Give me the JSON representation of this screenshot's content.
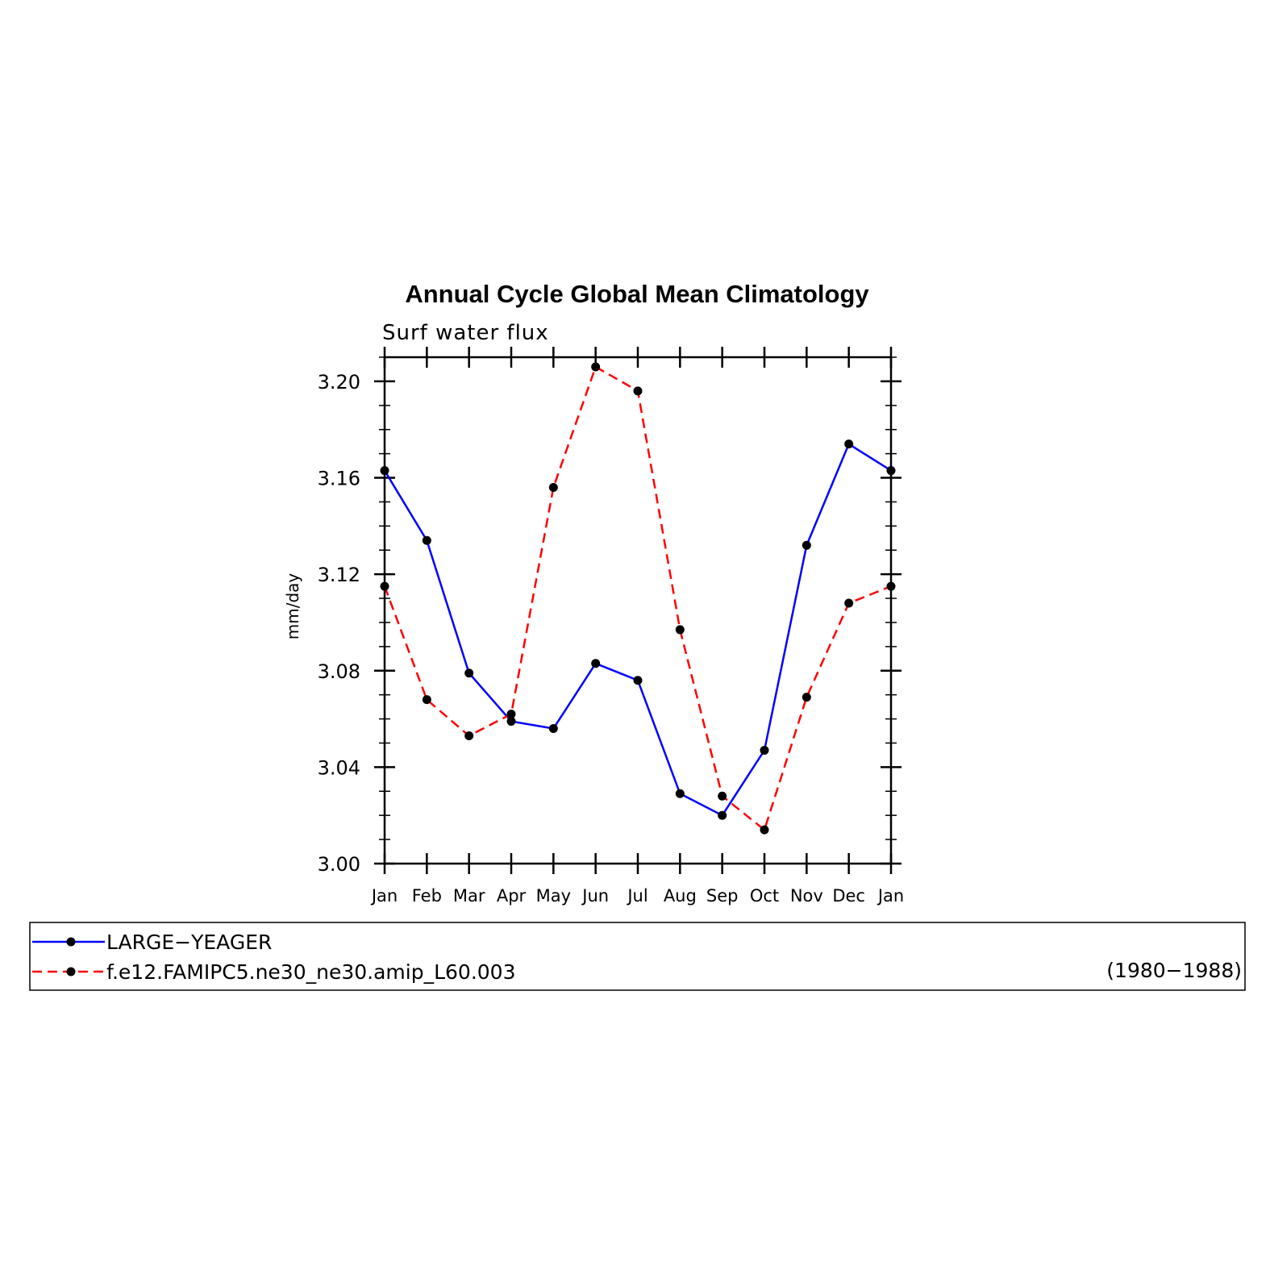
{
  "chart_data": {
    "type": "line",
    "title": "Annual Cycle Global Mean Climatology",
    "subtitle": "Surf water flux",
    "xlabel": "",
    "ylabel": "mm/day",
    "categories": [
      "Jan",
      "Feb",
      "Mar",
      "Apr",
      "May",
      "Jun",
      "Jul",
      "Aug",
      "Sep",
      "Oct",
      "Nov",
      "Dec",
      "Jan"
    ],
    "ylim": [
      3.0,
      3.21
    ],
    "yticks": [
      "3.00",
      "3.04",
      "3.08",
      "3.12",
      "3.16",
      "3.20"
    ],
    "series": [
      {
        "name": "LARGE−YEAGER",
        "color": "#0000ff",
        "dash": "solid",
        "marker": "circle",
        "values": [
          3.163,
          3.134,
          3.079,
          3.059,
          3.056,
          3.083,
          3.076,
          3.029,
          3.02,
          3.047,
          3.132,
          3.174,
          3.163
        ]
      },
      {
        "name": "f.e12.FAMIPC5.ne30_ne30.amip_L60.003",
        "color": "#ff0000",
        "dash": "dashed",
        "marker": "circle",
        "values": [
          3.115,
          3.068,
          3.053,
          3.062,
          3.156,
          3.206,
          3.196,
          3.097,
          3.028,
          3.014,
          3.069,
          3.108,
          3.115
        ]
      }
    ],
    "legend": {
      "placement": "bottom",
      "note": "(1980−1988)"
    },
    "grid": false
  }
}
